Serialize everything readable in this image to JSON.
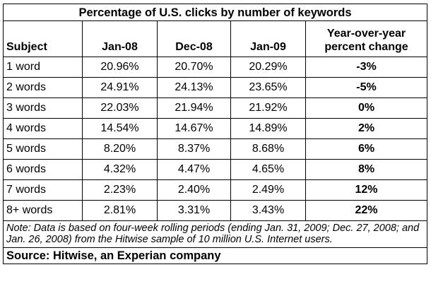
{
  "table": {
    "title": "Percentage of U.S. clicks by number of keywords",
    "headers": {
      "subject": "Subject",
      "jan08": "Jan-08",
      "dec08": "Dec-08",
      "jan09": "Jan-09",
      "yoy_line1": "Year-over-year",
      "yoy_line2": "percent change"
    },
    "rows": [
      {
        "subject": "1 word",
        "jan08": "20.96%",
        "dec08": "20.70%",
        "jan09": "20.29%",
        "yoy": "-3%"
      },
      {
        "subject": "2 words",
        "jan08": "24.91%",
        "dec08": "24.13%",
        "jan09": "23.65%",
        "yoy": "-5%"
      },
      {
        "subject": "3 words",
        "jan08": "22.03%",
        "dec08": "21.94%",
        "jan09": "21.92%",
        "yoy": "0%"
      },
      {
        "subject": "4 words",
        "jan08": "14.54%",
        "dec08": "14.67%",
        "jan09": "14.89%",
        "yoy": "2%"
      },
      {
        "subject": "5 words",
        "jan08": "8.20%",
        "dec08": "8.37%",
        "jan09": "8.68%",
        "yoy": "6%"
      },
      {
        "subject": "6 words",
        "jan08": "4.32%",
        "dec08": "4.47%",
        "jan09": "4.65%",
        "yoy": "8%"
      },
      {
        "subject": "7 words",
        "jan08": "2.23%",
        "dec08": "2.40%",
        "jan09": "2.49%",
        "yoy": "12%"
      },
      {
        "subject": "8+ words",
        "jan08": "2.81%",
        "dec08": "3.31%",
        "jan09": "3.43%",
        "yoy": "22%"
      }
    ],
    "note": "Note: Data is based on four-week rolling periods (ending Jan. 31, 2009; Dec. 27, 2008; and Jan. 26, 2008) from the Hitwise sample of 10 million U.S. Internet users.",
    "source": "Source: Hitwise, an Experian company"
  }
}
